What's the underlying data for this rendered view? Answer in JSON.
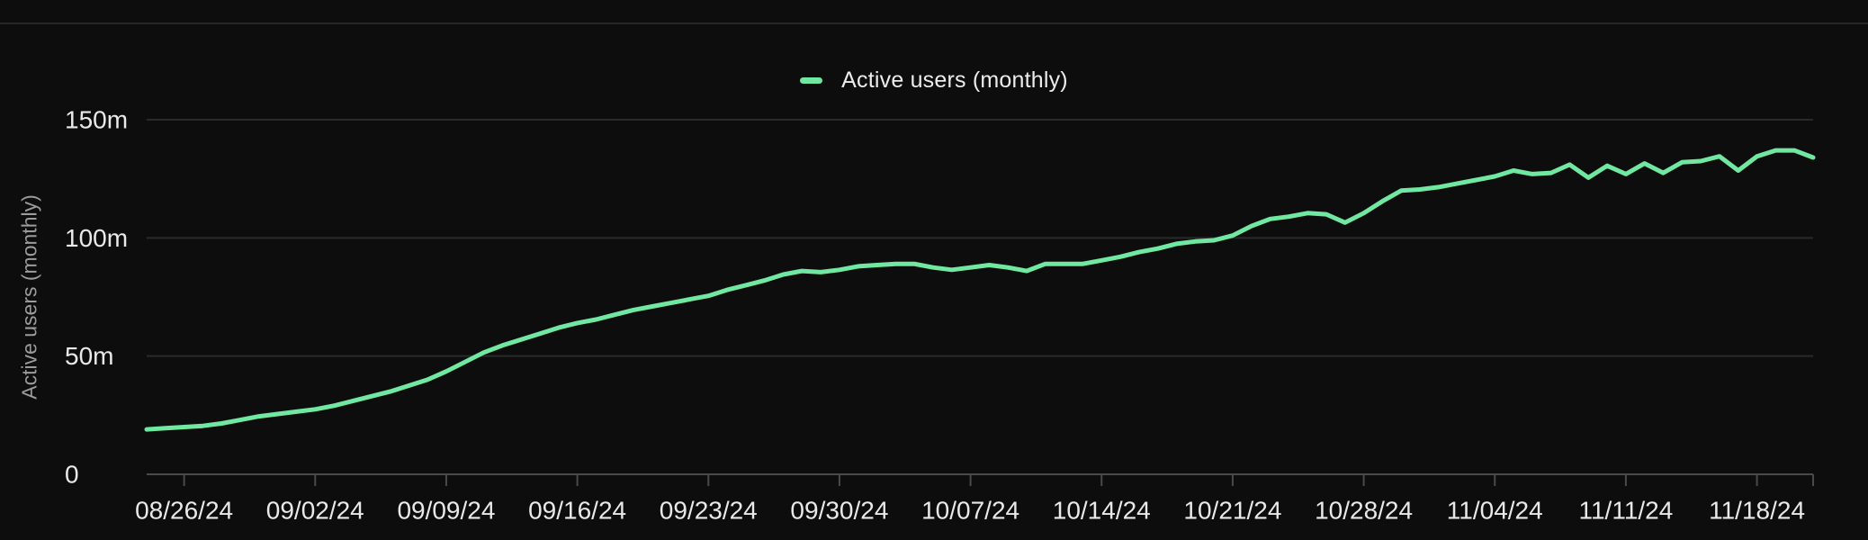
{
  "colors": {
    "background": "#0d0d0d",
    "divider": "#272727",
    "grid": "#2a2a2a",
    "axis": "#4a4a4a",
    "tick_text": "#e9e9e9",
    "axis_title_text": "#9c9c9c",
    "legend_text": "#ececec",
    "line": "#70e8a2"
  },
  "chart_data": {
    "type": "line",
    "title": "",
    "legend_label": "Active users (monthly)",
    "legend_position": "top-center",
    "ylabel": "Active users (monthly)",
    "ylim": [
      0,
      150
    ],
    "grid": "horizontal",
    "y_ticks": [
      {
        "value": 0,
        "label": "0"
      },
      {
        "value": 50,
        "label": "50m"
      },
      {
        "value": 100,
        "label": "100m"
      },
      {
        "value": 150,
        "label": "150m"
      }
    ],
    "x_tick_labels": [
      "08/26/24",
      "09/02/24",
      "09/09/24",
      "09/16/24",
      "09/23/24",
      "09/30/24",
      "10/07/24",
      "10/14/24",
      "10/21/24",
      "10/28/24",
      "11/04/24",
      "11/11/24",
      "11/18/24"
    ],
    "x_tick_indices": [
      2,
      9,
      16,
      23,
      30,
      37,
      44,
      51,
      58,
      65,
      72,
      79,
      86
    ],
    "dates": [
      "08/24/24",
      "08/25/24",
      "08/26/24",
      "08/27/24",
      "08/28/24",
      "08/29/24",
      "08/30/24",
      "08/31/24",
      "09/01/24",
      "09/02/24",
      "09/03/24",
      "09/04/24",
      "09/05/24",
      "09/06/24",
      "09/07/24",
      "09/08/24",
      "09/09/24",
      "09/10/24",
      "09/11/24",
      "09/12/24",
      "09/13/24",
      "09/14/24",
      "09/15/24",
      "09/16/24",
      "09/17/24",
      "09/18/24",
      "09/19/24",
      "09/20/24",
      "09/21/24",
      "09/22/24",
      "09/23/24",
      "09/24/24",
      "09/25/24",
      "09/26/24",
      "09/27/24",
      "09/28/24",
      "09/29/24",
      "09/30/24",
      "10/01/24",
      "10/02/24",
      "10/03/24",
      "10/04/24",
      "10/05/24",
      "10/06/24",
      "10/07/24",
      "10/08/24",
      "10/09/24",
      "10/10/24",
      "10/11/24",
      "10/12/24",
      "10/13/24",
      "10/14/24",
      "10/15/24",
      "10/16/24",
      "10/17/24",
      "10/18/24",
      "10/19/24",
      "10/20/24",
      "10/21/24",
      "10/22/24",
      "10/23/24",
      "10/24/24",
      "10/25/24",
      "10/26/24",
      "10/27/24",
      "10/28/24",
      "10/29/24",
      "10/30/24",
      "10/31/24",
      "11/01/24",
      "11/02/24",
      "11/03/24",
      "11/04/24",
      "11/05/24",
      "11/06/24",
      "11/07/24",
      "11/08/24",
      "11/09/24",
      "11/10/24",
      "11/11/24",
      "11/12/24",
      "11/13/24",
      "11/14/24",
      "11/15/24",
      "11/16/24",
      "11/17/24",
      "11/18/24",
      "11/19/24",
      "11/20/24",
      "11/21/24"
    ],
    "series": [
      {
        "name": "Active users (monthly)",
        "color": "#70e8a2",
        "unit": "millions",
        "values": [
          19,
          19.5,
          20,
          20.5,
          21.5,
          23,
          24.5,
          25.5,
          26.5,
          27.5,
          29,
          31,
          33,
          35,
          37.5,
          40,
          43.5,
          47.5,
          51.5,
          54.5,
          57,
          59.5,
          62,
          64,
          65.5,
          67.5,
          69.5,
          71,
          72.5,
          74,
          75.5,
          78,
          80,
          82,
          84.5,
          86,
          85.5,
          86.5,
          88,
          88.5,
          89,
          89,
          87.5,
          86.5,
          87.5,
          88.5,
          87.5,
          86,
          89,
          89,
          89,
          90.5,
          92,
          94,
          95.5,
          97.5,
          98.5,
          99,
          101,
          105,
          108,
          109,
          110.5,
          110,
          106.5,
          110.5,
          115.5,
          120,
          120.5,
          121.5,
          123,
          124.5,
          126,
          128.5,
          127,
          127.5,
          131,
          125.5,
          130.5,
          127,
          131.5,
          127.5,
          132,
          132.5,
          134.5,
          128.5,
          134.5,
          137,
          137,
          134
        ]
      }
    ]
  }
}
